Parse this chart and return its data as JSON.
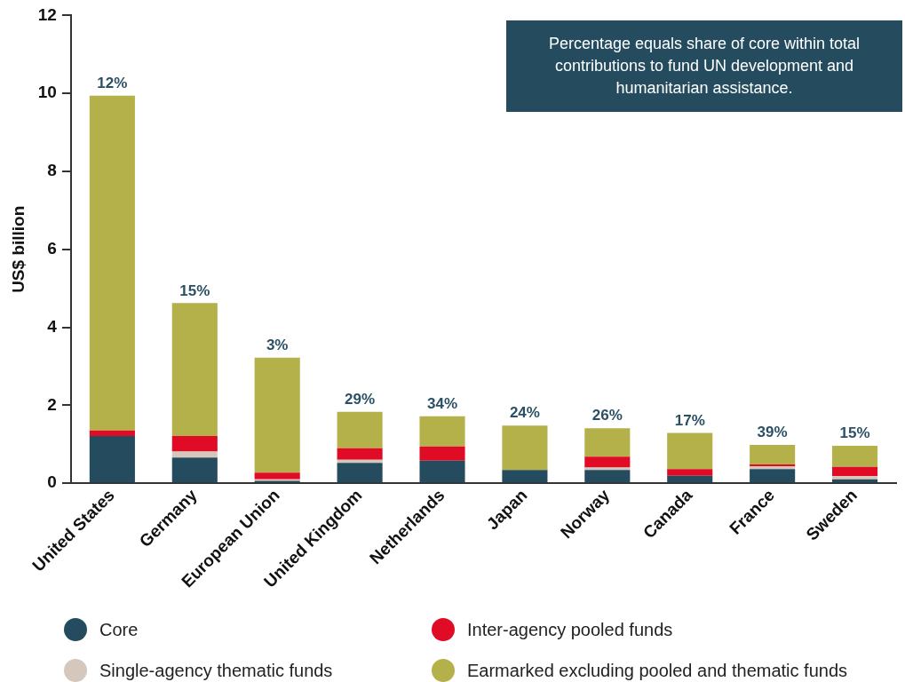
{
  "chart_data": {
    "type": "bar",
    "stacked": true,
    "ylabel": "US$ billion",
    "categories": [
      "United States",
      "Germany",
      "European Union",
      "United Kingdom",
      "Netherlands",
      "Japan",
      "Norway",
      "Canada",
      "France",
      "Sweden"
    ],
    "series": [
      {
        "name": "Core",
        "color": "#244c5e",
        "values": [
          1.21,
          0.66,
          0.06,
          0.52,
          0.58,
          0.34,
          0.34,
          0.19,
          0.36,
          0.1
        ]
      },
      {
        "name": "Single-agency thematic funds",
        "color": "#d6c7bd",
        "values": [
          0,
          0.15,
          0.04,
          0.08,
          0,
          0,
          0.06,
          0,
          0.07,
          0.08
        ]
      },
      {
        "name": "Inter-agency pooled funds",
        "color": "#e00b24",
        "values": [
          0.14,
          0.4,
          0.17,
          0.3,
          0.36,
          0,
          0.28,
          0.17,
          0.05,
          0.24
        ]
      },
      {
        "name": "Earmarked excluding pooled and thematic funds",
        "color": "#b5b14a",
        "values": [
          8.59,
          3.41,
          2.95,
          0.93,
          0.78,
          1.14,
          0.73,
          0.93,
          0.5,
          0.54
        ]
      }
    ],
    "ylim": [
      0,
      12
    ],
    "yticks": [
      0,
      2,
      4,
      6,
      8,
      10,
      12
    ],
    "grid": false,
    "legend": "bottom",
    "annotations": [
      "Percentage equals share of core within total contributions to fund UN development and humanitarian assistance.",
      {
        "text": "12%",
        "x": "United States",
        "y": 9.94
      },
      {
        "text": "15%",
        "x": "Germany",
        "y": 4.62
      },
      {
        "text": "3%",
        "x": "European Union",
        "y": 3.22
      },
      {
        "text": "29%",
        "x": "United Kingdom",
        "y": 1.83
      },
      {
        "text": "34%",
        "x": "Netherlands",
        "y": 1.72
      },
      {
        "text": "24%",
        "x": "Japan",
        "y": 1.48
      },
      {
        "text": "26%",
        "x": "Norway",
        "y": 1.41
      },
      {
        "text": "17%",
        "x": "Canada",
        "y": 1.29
      },
      {
        "text": "39%",
        "x": "France",
        "y": 0.98
      },
      {
        "text": "15%",
        "x": "Sweden",
        "y": 0.96
      }
    ]
  }
}
